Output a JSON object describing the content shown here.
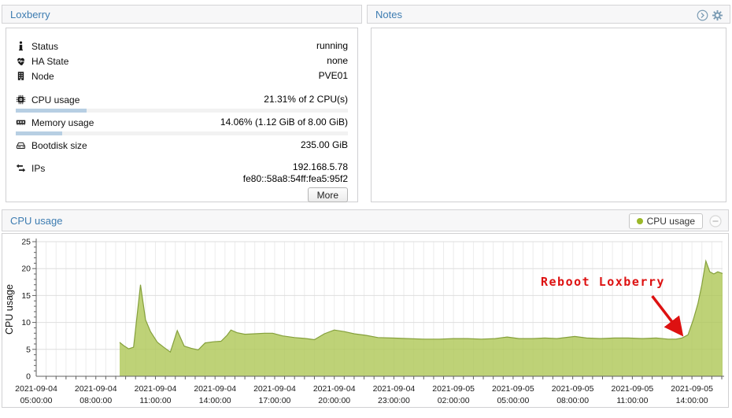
{
  "colors": {
    "accent": "#3d7cb1",
    "area_fill": "#aec755",
    "area_line": "#85a03c",
    "legend_dot": "#9bb829",
    "annotation": "#dd1111",
    "progress_fill": "#b7cfe3"
  },
  "panels": {
    "vm": {
      "title": "Loxberry",
      "rows": [
        {
          "icon": "info-icon",
          "label": "Status",
          "value": "running"
        },
        {
          "icon": "heartbeat-icon",
          "label": "HA State",
          "value": "none"
        },
        {
          "icon": "node-icon",
          "label": "Node",
          "value": "PVE01"
        },
        {
          "icon": "cpu-icon",
          "label": "CPU usage",
          "value": "21.31% of 2 CPU(s)",
          "progress": 21.31
        },
        {
          "icon": "memory-icon",
          "label": "Memory usage",
          "value": "14.06% (1.12 GiB of 8.00 GiB)",
          "progress": 14.06
        },
        {
          "icon": "disk-icon",
          "label": "Bootdisk size",
          "value": "235.00 GiB"
        },
        {
          "icon": "exchange-icon",
          "label": "IPs",
          "value": "192.168.5.78\nfe80::58a8:54ff:fea5:95f2"
        }
      ],
      "more_label": "More"
    },
    "notes": {
      "title": "Notes",
      "icons": [
        "chevron-circle-icon",
        "gear-icon"
      ]
    },
    "chart": {
      "title": "CPU usage",
      "legend_label": "CPU usage",
      "collapse_icon": "minus-circle-icon"
    }
  },
  "chart_data": {
    "type": "area",
    "title": "CPU usage",
    "ylabel": "CPU usage",
    "ylim": [
      0,
      25
    ],
    "y_ticks": [
      0,
      5,
      10,
      15,
      20,
      25
    ],
    "x_unit": "hours after 2021-09-04 05:00:00",
    "xlim": [
      0,
      34.54
    ],
    "grid": true,
    "legend_position": "top-right",
    "x_ticks": [
      {
        "pos": 0,
        "date": "2021-09-04",
        "time": "05:00:00"
      },
      {
        "pos": 3,
        "date": "2021-09-04",
        "time": "08:00:00"
      },
      {
        "pos": 6,
        "date": "2021-09-04",
        "time": "11:00:00"
      },
      {
        "pos": 9,
        "date": "2021-09-04",
        "time": "14:00:00"
      },
      {
        "pos": 12,
        "date": "2021-09-04",
        "time": "17:00:00"
      },
      {
        "pos": 15,
        "date": "2021-09-04",
        "time": "20:00:00"
      },
      {
        "pos": 18,
        "date": "2021-09-04",
        "time": "23:00:00"
      },
      {
        "pos": 21,
        "date": "2021-09-05",
        "time": "02:00:00"
      },
      {
        "pos": 24,
        "date": "2021-09-05",
        "time": "05:00:00"
      },
      {
        "pos": 27,
        "date": "2021-09-05",
        "time": "08:00:00"
      },
      {
        "pos": 30,
        "date": "2021-09-05",
        "time": "11:00:00"
      },
      {
        "pos": 33,
        "date": "2021-09-05",
        "time": "14:00:00"
      }
    ],
    "series": [
      {
        "name": "CPU usage",
        "points": [
          [
            4.2,
            6.3
          ],
          [
            4.4,
            5.7
          ],
          [
            4.65,
            5.1
          ],
          [
            4.9,
            5.4
          ],
          [
            5.25,
            17.0
          ],
          [
            5.5,
            10.5
          ],
          [
            5.75,
            8.3
          ],
          [
            6.1,
            6.3
          ],
          [
            6.45,
            5.3
          ],
          [
            6.75,
            4.5
          ],
          [
            7.1,
            8.5
          ],
          [
            7.45,
            5.6
          ],
          [
            7.8,
            5.2
          ],
          [
            8.15,
            4.9
          ],
          [
            8.5,
            6.2
          ],
          [
            8.9,
            6.4
          ],
          [
            9.3,
            6.5
          ],
          [
            9.6,
            7.6
          ],
          [
            9.8,
            8.6
          ],
          [
            10.1,
            8.1
          ],
          [
            10.5,
            7.8
          ],
          [
            11.0,
            7.9
          ],
          [
            11.5,
            8.0
          ],
          [
            11.9,
            8.0
          ],
          [
            12.4,
            7.5
          ],
          [
            13.0,
            7.2
          ],
          [
            13.6,
            7.0
          ],
          [
            14.0,
            6.8
          ],
          [
            14.5,
            7.9
          ],
          [
            15.0,
            8.6
          ],
          [
            15.5,
            8.3
          ],
          [
            16.0,
            7.9
          ],
          [
            16.6,
            7.6
          ],
          [
            17.2,
            7.2
          ],
          [
            17.9,
            7.1
          ],
          [
            18.7,
            7.0
          ],
          [
            19.5,
            6.9
          ],
          [
            20.3,
            6.9
          ],
          [
            21.0,
            7.0
          ],
          [
            21.7,
            7.0
          ],
          [
            22.4,
            6.9
          ],
          [
            23.1,
            7.0
          ],
          [
            23.7,
            7.3
          ],
          [
            24.3,
            7.0
          ],
          [
            25.0,
            7.0
          ],
          [
            25.6,
            7.1
          ],
          [
            26.2,
            7.0
          ],
          [
            27.1,
            7.4
          ],
          [
            27.7,
            7.1
          ],
          [
            28.4,
            7.0
          ],
          [
            29.1,
            7.1
          ],
          [
            29.8,
            7.1
          ],
          [
            30.5,
            7.0
          ],
          [
            31.2,
            7.1
          ],
          [
            31.8,
            6.9
          ],
          [
            32.2,
            6.9
          ],
          [
            32.5,
            7.1
          ],
          [
            32.8,
            7.7
          ],
          [
            33.05,
            10.3
          ],
          [
            33.3,
            13.5
          ],
          [
            33.5,
            17.0
          ],
          [
            33.7,
            21.4
          ],
          [
            33.9,
            19.4
          ],
          [
            34.1,
            19.0
          ],
          [
            34.3,
            19.4
          ],
          [
            34.54,
            19.1
          ]
        ]
      }
    ],
    "annotation": {
      "text": "Reboot Loxberry",
      "arrow_from_hours_value": [
        31.0,
        14.9
      ],
      "arrow_to_hours_value": [
        32.4,
        8.2
      ]
    }
  }
}
